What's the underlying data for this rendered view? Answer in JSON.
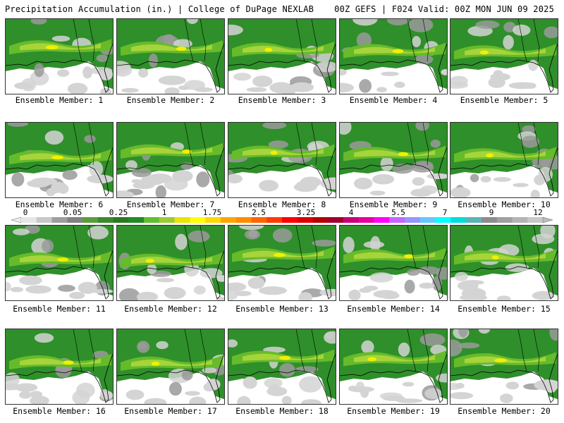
{
  "header": {
    "title": "Precipitation Accumulation (in.) | College of DuPage NEXLAB",
    "run_info": "00Z GEFS | F024 Valid: 00Z MON JUN 09 2025"
  },
  "member_label_prefix": "Ensemble Member: ",
  "members": [
    {
      "number": "1"
    },
    {
      "number": "2"
    },
    {
      "number": "3"
    },
    {
      "number": "4"
    },
    {
      "number": "5"
    },
    {
      "number": "6"
    },
    {
      "number": "7"
    },
    {
      "number": "8"
    },
    {
      "number": "9"
    },
    {
      "number": "10"
    },
    {
      "number": "11"
    },
    {
      "number": "12"
    },
    {
      "number": "13"
    },
    {
      "number": "14"
    },
    {
      "number": "15"
    },
    {
      "number": "16"
    },
    {
      "number": "17"
    },
    {
      "number": "18"
    },
    {
      "number": "19"
    },
    {
      "number": "20"
    }
  ],
  "colorbar": {
    "tick_labels": [
      "0",
      "0.05",
      "0.25",
      "1",
      "1.75",
      "2.5",
      "3.25",
      "4",
      "5.5",
      "7",
      "9",
      "12"
    ],
    "colors": [
      "#e6e6e6",
      "#c8c8c8",
      "#9e9e9e",
      "#828282",
      "#5a9e3a",
      "#3a8a2a",
      "#2a7a22",
      "#228b22",
      "#5fbf2f",
      "#9acd32",
      "#e6e600",
      "#ffff00",
      "#ffd700",
      "#ffa500",
      "#ff8c00",
      "#ff6400",
      "#ff3c00",
      "#ff0000",
      "#dc0000",
      "#b40000",
      "#a00030",
      "#c80078",
      "#e600a0",
      "#ff00ff",
      "#c864ff",
      "#9696ff",
      "#64c8ff",
      "#00ffff",
      "#00dcdc",
      "#5ab4b4",
      "#8c8c8c",
      "#a0a0a0",
      "#b4b4b4",
      "#c8c8c8"
    ]
  },
  "map_colors": {
    "green": "#2f8f2a",
    "light_green": "#66bb2a",
    "yellow_green": "#a6d43a",
    "yellow": "#f0f000",
    "gray": "#9a9a9a",
    "light_gray": "#d4d4d4",
    "land_white": "#ffffff",
    "coast": "#000000"
  }
}
